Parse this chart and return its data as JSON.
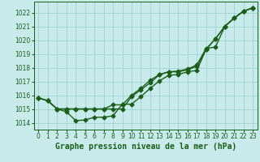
{
  "background_color": "#c8eaea",
  "plot_bg_color": "#c8eaea",
  "grid_color": "#99cccc",
  "line_color": "#1a5e1a",
  "title": "Graphe pression niveau de la mer (hPa)",
  "xlim": [
    -0.5,
    23.5
  ],
  "ylim": [
    1013.5,
    1022.8
  ],
  "yticks": [
    1014,
    1015,
    1016,
    1017,
    1018,
    1019,
    1020,
    1021,
    1022
  ],
  "xticks": [
    0,
    1,
    2,
    3,
    4,
    5,
    6,
    7,
    8,
    9,
    10,
    11,
    12,
    13,
    14,
    15,
    16,
    17,
    18,
    19,
    20,
    21,
    22,
    23
  ],
  "line1_x": [
    0,
    1,
    2,
    3,
    4,
    5,
    6,
    7,
    8,
    9,
    10,
    11,
    12,
    13,
    14,
    15,
    16,
    17,
    18,
    19,
    20,
    21,
    22,
    23
  ],
  "line1_y": [
    1015.8,
    1015.6,
    1015.0,
    1014.8,
    1014.15,
    1014.2,
    1014.4,
    1014.4,
    1014.5,
    1015.35,
    1015.35,
    1015.9,
    1016.5,
    1017.05,
    1017.45,
    1017.5,
    1017.7,
    1017.8,
    1019.35,
    1020.1,
    1021.0,
    1021.6,
    1022.1,
    1022.35
  ],
  "line2_x": [
    0,
    1,
    2,
    3,
    4,
    5,
    6,
    7,
    8,
    9,
    10,
    11,
    12,
    13,
    14,
    15,
    16,
    17,
    18,
    19,
    20,
    21,
    22,
    23
  ],
  "line2_y": [
    1015.8,
    1015.6,
    1015.0,
    1015.0,
    1015.0,
    1015.0,
    1015.0,
    1015.0,
    1015.0,
    1015.0,
    1015.9,
    1016.4,
    1016.9,
    1017.5,
    1017.7,
    1017.7,
    1017.85,
    1018.1,
    1019.35,
    1020.1,
    1021.0,
    1021.6,
    1022.1,
    1022.35
  ],
  "line3_x": [
    0,
    1,
    2,
    3,
    4,
    5,
    6,
    7,
    8,
    9,
    10,
    11,
    12,
    13,
    14,
    15,
    16,
    17,
    18,
    19,
    20,
    21,
    22,
    23
  ],
  "line3_y": [
    1015.8,
    1015.6,
    1015.0,
    1015.0,
    1015.0,
    1015.0,
    1015.0,
    1015.0,
    1015.3,
    1015.3,
    1016.0,
    1016.5,
    1017.1,
    1017.5,
    1017.7,
    1017.75,
    1017.9,
    1018.2,
    1019.4,
    1019.5,
    1021.0,
    1021.6,
    1022.1,
    1022.35
  ],
  "marker": "D",
  "marker_size": 2.5,
  "linewidth": 1.0,
  "title_fontsize": 7,
  "tick_fontsize": 5.5
}
